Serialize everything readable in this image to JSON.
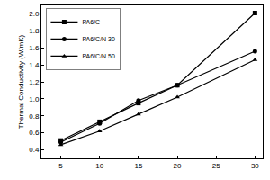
{
  "chart_data": {
    "type": "line",
    "y_label": "Thermal Conductivity (W/mK)",
    "x": [
      5,
      10,
      15,
      20,
      30
    ],
    "series": [
      {
        "name": "PA6/C",
        "color": "#000000",
        "marker": "square",
        "values": [
          0.51,
          0.73,
          0.95,
          1.16,
          2.01
        ]
      },
      {
        "name": "PA6/C/N 30",
        "color": "#000000",
        "marker": "circle",
        "values": [
          0.49,
          0.71,
          0.98,
          1.16,
          1.56
        ]
      },
      {
        "name": "PA6/C/N 50",
        "color": "#000000",
        "marker": "triangle",
        "values": [
          0.46,
          0.62,
          0.82,
          1.02,
          1.46
        ]
      }
    ],
    "xlim": [
      2.5,
      31
    ],
    "xticks": [
      5,
      10,
      15,
      20,
      25,
      30
    ],
    "ylim": [
      0.3,
      2.1
    ],
    "yticks": [
      0.4,
      0.6,
      0.8,
      {
        "value": 1,
        "label": "1.0"
      },
      1.2,
      1.4,
      1.6,
      1.8,
      {
        "value": 2,
        "label": "2.0"
      }
    ],
    "grid": false,
    "legend": "top-left"
  }
}
